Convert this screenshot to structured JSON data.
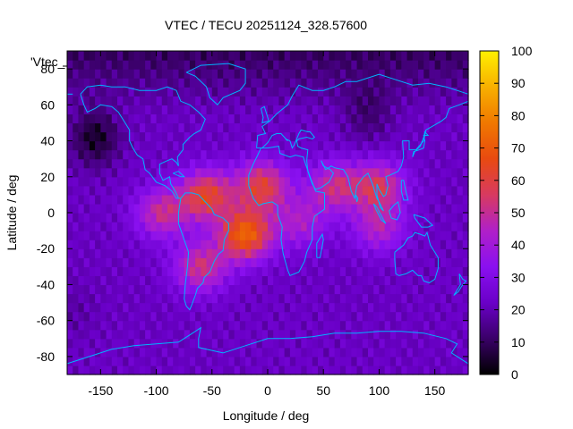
{
  "chart_data": {
    "type": "heatmap",
    "title": "VTEC / TECU 20251124_328.57600",
    "xlabel": "Longitude / deg",
    "ylabel": "Latitude / deg",
    "key_label": "'Vtec_",
    "xlim": [
      -180,
      180
    ],
    "ylim": [
      -90,
      90
    ],
    "x_ticks": [
      -150,
      -100,
      -50,
      0,
      50,
      100,
      150
    ],
    "y_ticks": [
      -80,
      -60,
      -40,
      -20,
      0,
      20,
      40,
      60,
      80
    ],
    "colorbar": {
      "range": [
        0,
        100
      ],
      "ticks": [
        0,
        10,
        20,
        30,
        40,
        50,
        60,
        70,
        80,
        90,
        100
      ],
      "palette": [
        "#000000",
        "#3a0068",
        "#6a00c8",
        "#8a10f0",
        "#b020c8",
        "#d83a60",
        "#e84a10",
        "#f07800",
        "#f8b000",
        "#fff000"
      ]
    },
    "grid": {
      "lon_step": 5,
      "lat_step": 5
    },
    "features": {
      "background_level": 22,
      "arctic_level": 12,
      "lows": [
        {
          "lon": -155,
          "lat": 42,
          "peak": -18
        },
        {
          "lon": 90,
          "lat": 55,
          "peak": -10
        },
        {
          "lon": -175,
          "lat": -55,
          "peak": -4
        }
      ],
      "highs": [
        {
          "lon": -55,
          "lat": 10,
          "peak": 40
        },
        {
          "lon": -20,
          "lat": -12,
          "peak": 50
        },
        {
          "lon": -5,
          "lat": 15,
          "peak": 38
        },
        {
          "lon": -95,
          "lat": 0,
          "peak": 28
        },
        {
          "lon": -60,
          "lat": -30,
          "peak": 30
        },
        {
          "lon": 60,
          "lat": 15,
          "peak": 28
        },
        {
          "lon": 100,
          "lat": 15,
          "peak": 32
        },
        {
          "lon": 100,
          "lat": -8,
          "peak": 22
        },
        {
          "lon": 30,
          "lat": -5,
          "peak": 20
        }
      ]
    },
    "coastline_color": "#00b4ff"
  }
}
